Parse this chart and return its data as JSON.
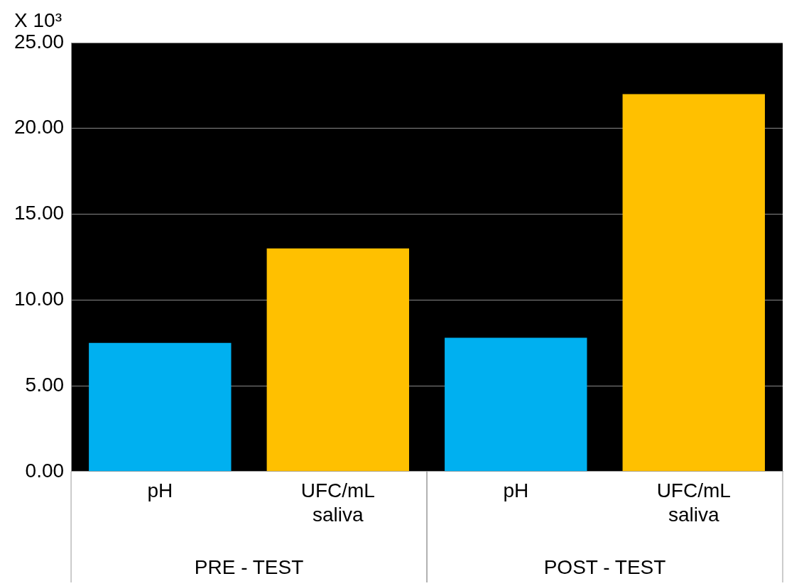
{
  "chart_data": {
    "type": "bar",
    "ylabel": "X 10³",
    "categories": [
      "pH",
      "UFC/mL saliva",
      "pH",
      "UFC/mL saliva"
    ],
    "values": [
      7.5,
      13.0,
      7.8,
      22.0
    ],
    "colors": [
      "#00b0f0",
      "#ffc000",
      "#00b0f0",
      "#ffc000"
    ],
    "ylim": [
      0,
      25
    ],
    "yticks": [
      {
        "value": 0,
        "label": "0.00"
      },
      {
        "value": 5,
        "label": "5.00"
      },
      {
        "value": 10,
        "label": "10.00"
      },
      {
        "value": 15,
        "label": "15.00"
      },
      {
        "value": 20,
        "label": "20.00"
      },
      {
        "value": 25,
        "label": "25.00"
      }
    ],
    "grid": "y",
    "legend": false,
    "annotations": [
      "PRE - TEST",
      "POST - TEST"
    ]
  }
}
